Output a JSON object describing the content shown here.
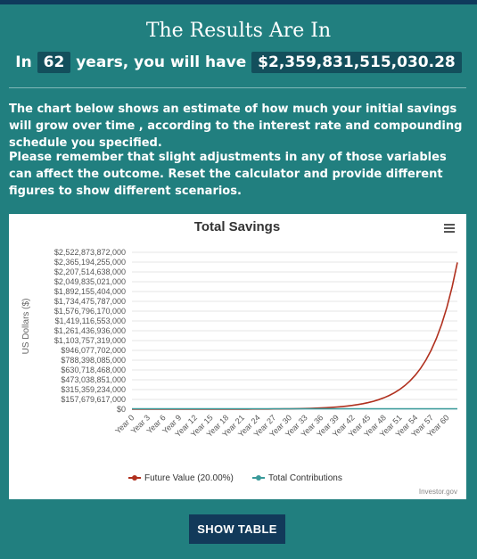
{
  "header": {
    "title": "The Results Are In",
    "subtitle_prefix": "In",
    "years": "62",
    "subtitle_middle": "years, you will have",
    "amount": "$2,359,831,515,030.28"
  },
  "body": {
    "paragraph1": "The chart below shows an estimate of how much your initial savings will grow over time , according to the interest rate and compounding schedule you specified.",
    "paragraph2": "Please remember that slight adjustments in any of those variables can affect the outcome. Reset the calculator and provide different figures to show different scenarios."
  },
  "chart_data": {
    "type": "line",
    "title": "Total Savings",
    "ylabel": "US Dollars ($)",
    "xlabel": "",
    "credit": "Investor.gov",
    "ylim": [
      0,
      2522873872000
    ],
    "yticks": [
      "$2,522,873,872,000",
      "$2,365,194,255,000",
      "$2,207,514,638,000",
      "$2,049,835,021,000",
      "$1,892,155,404,000",
      "$1,734,475,787,000",
      "$1,576,796,170,000",
      "$1,419,116,553,000",
      "$1,261,436,936,000",
      "$1,103,757,319,000",
      "$946,077,702,000",
      "$788,398,085,000",
      "$630,718,468,000",
      "$473,038,851,000",
      "$315,359,234,000",
      "$157,679,617,000",
      "$0"
    ],
    "xticks": [
      "Year 0",
      "Year 3",
      "Year 6",
      "Year 9",
      "Year 12",
      "Year 15",
      "Year 18",
      "Year 21",
      "Year 24",
      "Year 27",
      "Year 30",
      "Year 33",
      "Year 36",
      "Year 39",
      "Year 42",
      "Year 45",
      "Year 48",
      "Year 51",
      "Year 54",
      "Year 57",
      "Year 60"
    ],
    "x_years_max": 62,
    "grid": true,
    "legend_position": "bottom",
    "series": [
      {
        "name": "Future Value (20.00%)",
        "color": "#b0301e",
        "growth_rate": 0.2,
        "final_value": 2359831515030.28
      },
      {
        "name": "Total Contributions",
        "color": "#3a9a9a",
        "constant": true
      }
    ]
  },
  "actions": {
    "show_table": "SHOW TABLE"
  },
  "colors": {
    "background": "#217f7f",
    "highlight": "#134f5c",
    "button": "#123a5a"
  },
  "icons": {
    "chart_menu": "hamburger-menu-icon"
  }
}
